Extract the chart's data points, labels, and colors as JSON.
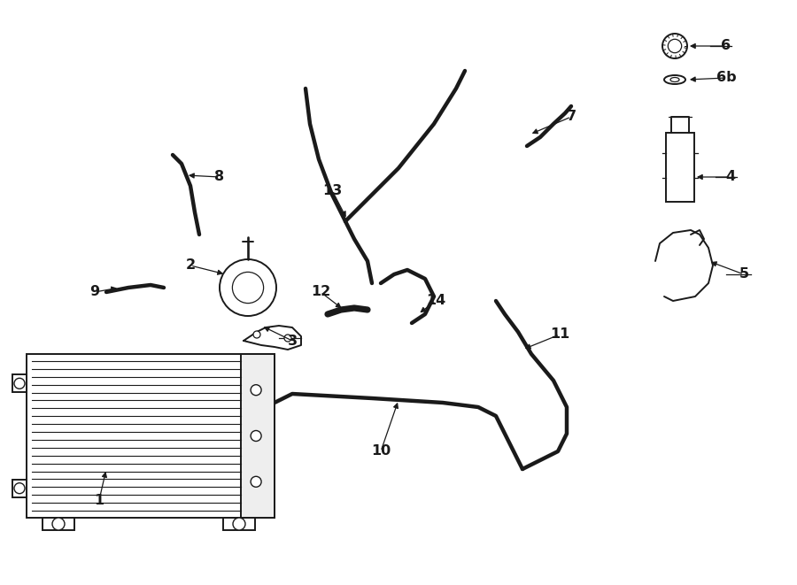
{
  "background_color": "#ffffff",
  "line_color": "#1a1a1a",
  "fig_width": 9.0,
  "fig_height": 6.61,
  "dpi": 100,
  "lw_hose": 3.2,
  "lw_part": 1.4,
  "lw_thin": 0.9,
  "label_fontsize": 11.5
}
